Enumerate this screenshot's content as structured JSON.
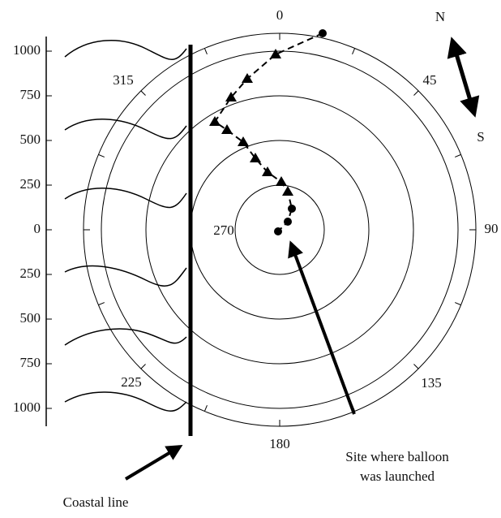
{
  "scale_labels": [
    "1000",
    "750",
    "500",
    "250",
    "0",
    "250",
    "500",
    "750",
    "1000"
  ],
  "angle_labels": {
    "a0": "0",
    "a45": "45",
    "a90": "90",
    "a135": "135",
    "a180": "180",
    "a225": "225",
    "a270": "270",
    "a315": "315"
  },
  "compass": {
    "north": "N",
    "south": "S"
  },
  "annotations": {
    "site_line1": "Site where balloon",
    "site_line2": "was launched",
    "coast": "Coastal line"
  }
}
